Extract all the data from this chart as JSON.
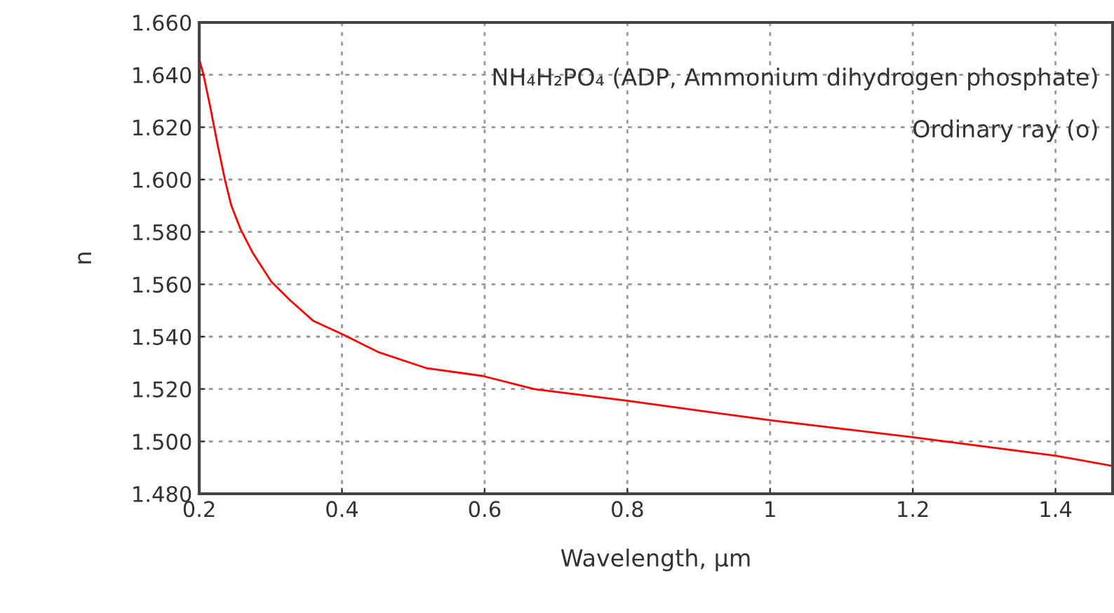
{
  "chart_data": {
    "type": "line",
    "xlabel": "Wavelength, µm",
    "ylabel": "n",
    "annotations": [
      "NH₄H₂PO₄ (ADP, Ammonium dihydrogen phosphate)",
      "Ordinary ray (o)"
    ],
    "series": [
      {
        "color": "#ff0000",
        "x": [
          0.2,
          0.206,
          0.216,
          0.226,
          0.236,
          0.245,
          0.258,
          0.275,
          0.301,
          0.327,
          0.36,
          0.4,
          0.452,
          0.518,
          0.597,
          0.669,
          0.8,
          1.002,
          1.2,
          1.401,
          1.48
        ],
        "values": [
          1.646,
          1.64,
          1.627,
          1.613,
          1.6,
          1.59,
          1.581,
          1.572,
          1.561,
          1.554,
          1.546,
          1.541,
          1.534,
          1.528,
          1.525,
          1.52,
          1.5155,
          1.508,
          1.5016,
          1.4945,
          1.4906
        ]
      }
    ],
    "xlim": [
      0.2,
      1.48
    ],
    "ylim": [
      1.48,
      1.66
    ],
    "xticks": [
      0.2,
      0.4,
      0.6,
      0.8,
      1,
      1.2,
      1.4
    ],
    "yticks": [
      {
        "value": 1.48,
        "label": "1.480"
      },
      {
        "value": 1.5,
        "label": "1.500"
      },
      {
        "value": 1.52,
        "label": "1.520"
      },
      {
        "value": 1.54,
        "label": "1.540"
      },
      {
        "value": 1.56,
        "label": "1.560"
      },
      {
        "value": 1.58,
        "label": "1.580"
      },
      {
        "value": 1.6,
        "label": "1.600"
      },
      {
        "value": 1.62,
        "label": "1.620"
      },
      {
        "value": 1.64,
        "label": "1.640"
      },
      {
        "value": 1.66,
        "label": "1.660"
      }
    ],
    "grid": true,
    "line_style": "solid",
    "marker": "none"
  }
}
